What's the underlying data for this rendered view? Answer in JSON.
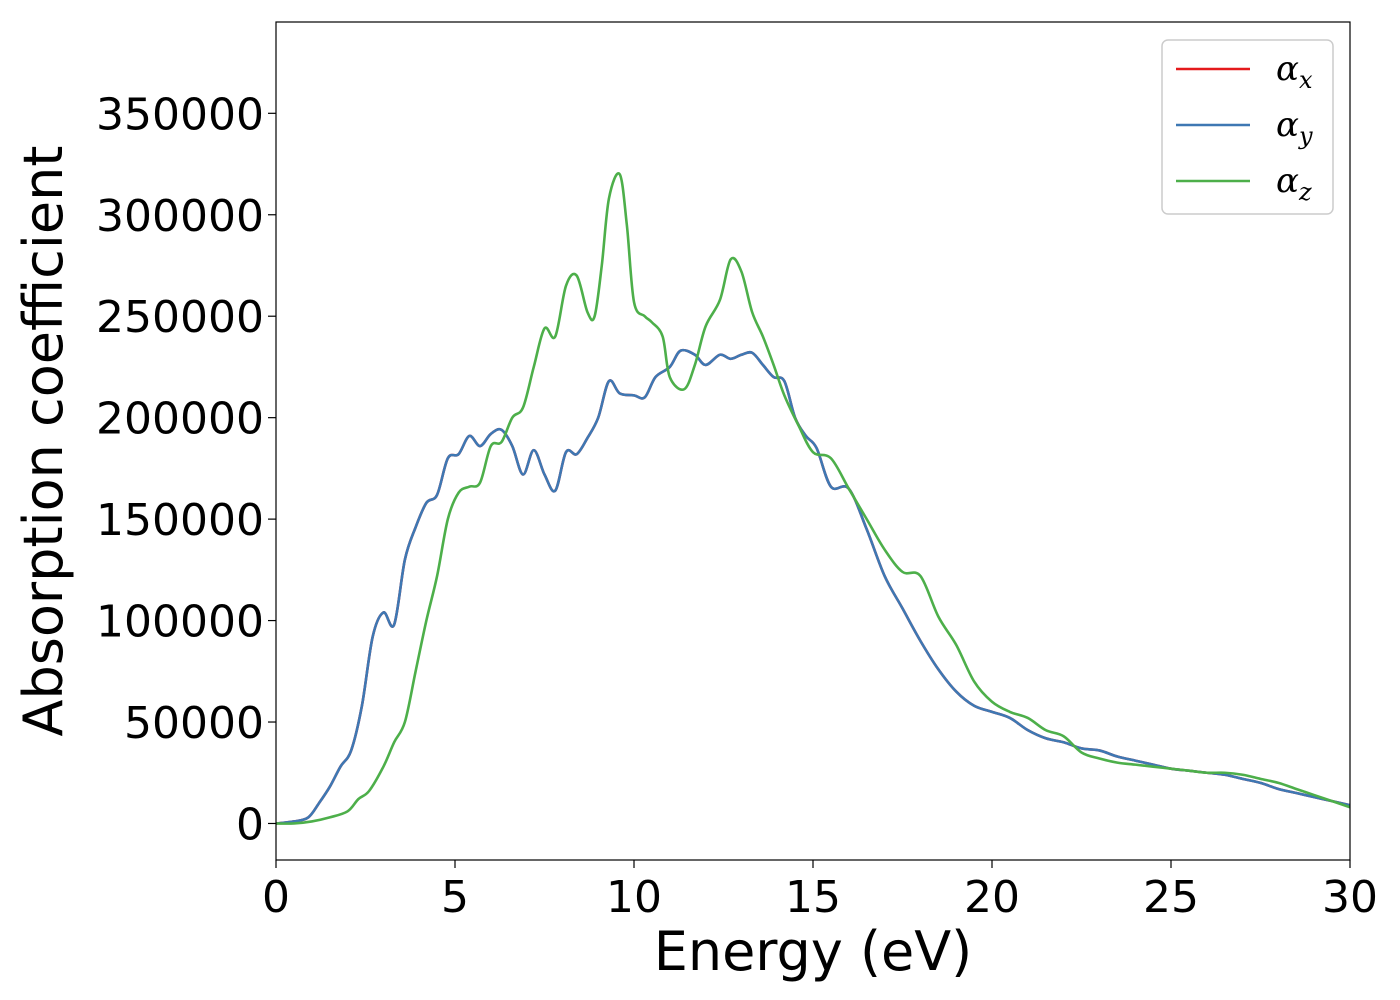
{
  "chart_data": {
    "type": "line",
    "xlabel": "Energy (eV)",
    "ylabel": "Absorption coefficient",
    "xlim": [
      0,
      30
    ],
    "ylim": [
      -18000,
      395000
    ],
    "xticks": [
      0,
      5,
      10,
      15,
      20,
      25,
      30
    ],
    "yticks": [
      0,
      50000,
      100000,
      150000,
      200000,
      250000,
      300000,
      350000
    ],
    "grid": false,
    "legend_position": "top-right",
    "series": [
      {
        "name": "α_x",
        "name_base": "α",
        "name_sub": "x",
        "color": "#e41a1c",
        "x": [
          0,
          0.5,
          0.9,
          1.2,
          1.5,
          1.8,
          2.1,
          2.4,
          2.7,
          3.0,
          3.3,
          3.6,
          3.9,
          4.2,
          4.5,
          4.8,
          5.1,
          5.4,
          5.7,
          6.0,
          6.3,
          6.6,
          6.9,
          7.2,
          7.5,
          7.8,
          8.1,
          8.4,
          8.7,
          9.0,
          9.3,
          9.6,
          10.0,
          10.3,
          10.6,
          11.0,
          11.3,
          11.7,
          12.0,
          12.4,
          12.7,
          13.0,
          13.3,
          13.6,
          13.9,
          14.2,
          14.5,
          14.8,
          15.1,
          15.5,
          16.0,
          16.5,
          17.0,
          17.5,
          18.0,
          18.5,
          19.0,
          19.5,
          20.0,
          20.5,
          21.0,
          21.5,
          22.0,
          22.5,
          23.0,
          23.5,
          24.0,
          24.5,
          25.0,
          25.5,
          26.0,
          26.5,
          27.0,
          27.5,
          28.0,
          28.5,
          29.0,
          29.5,
          30.0
        ],
        "y": [
          0,
          1000,
          3000,
          10000,
          18000,
          28000,
          36000,
          58000,
          92000,
          104000,
          98000,
          130000,
          146000,
          158000,
          162000,
          180000,
          182000,
          191000,
          186000,
          192000,
          194000,
          186000,
          172000,
          184000,
          172000,
          164000,
          183000,
          182000,
          190000,
          200000,
          218000,
          212000,
          211000,
          210000,
          220000,
          225000,
          233000,
          231000,
          226000,
          231000,
          229000,
          231000,
          232000,
          226000,
          220000,
          218000,
          200000,
          191000,
          185000,
          166000,
          165000,
          145000,
          122000,
          106000,
          90000,
          76000,
          65000,
          58000,
          55000,
          52000,
          46000,
          42000,
          40000,
          37000,
          36000,
          33000,
          31000,
          29000,
          27000,
          26000,
          25000,
          24000,
          22000,
          20000,
          17000,
          15000,
          13000,
          11000,
          9000
        ],
        "x_from": 0
      },
      {
        "name": "α_y",
        "name_base": "α",
        "name_sub": "y",
        "color": "#3e78b3",
        "x": [
          0,
          0.5,
          0.9,
          1.2,
          1.5,
          1.8,
          2.1,
          2.4,
          2.7,
          3.0,
          3.3,
          3.6,
          3.9,
          4.2,
          4.5,
          4.8,
          5.1,
          5.4,
          5.7,
          6.0,
          6.3,
          6.6,
          6.9,
          7.2,
          7.5,
          7.8,
          8.1,
          8.4,
          8.7,
          9.0,
          9.3,
          9.6,
          10.0,
          10.3,
          10.6,
          11.0,
          11.3,
          11.7,
          12.0,
          12.4,
          12.7,
          13.0,
          13.3,
          13.6,
          13.9,
          14.2,
          14.5,
          14.8,
          15.1,
          15.5,
          16.0,
          16.5,
          17.0,
          17.5,
          18.0,
          18.5,
          19.0,
          19.5,
          20.0,
          20.5,
          21.0,
          21.5,
          22.0,
          22.5,
          23.0,
          23.5,
          24.0,
          24.5,
          25.0,
          25.5,
          26.0,
          26.5,
          27.0,
          27.5,
          28.0,
          28.5,
          29.0,
          29.5,
          30.0
        ],
        "y": [
          0,
          1000,
          3000,
          10000,
          18000,
          28000,
          36000,
          58000,
          92000,
          104000,
          98000,
          130000,
          146000,
          158000,
          162000,
          180000,
          182000,
          191000,
          186000,
          192000,
          194000,
          186000,
          172000,
          184000,
          172000,
          164000,
          183000,
          182000,
          190000,
          200000,
          218000,
          212000,
          211000,
          210000,
          220000,
          225000,
          233000,
          231000,
          226000,
          231000,
          229000,
          231000,
          232000,
          226000,
          220000,
          218000,
          200000,
          191000,
          185000,
          166000,
          165000,
          145000,
          122000,
          106000,
          90000,
          76000,
          65000,
          58000,
          55000,
          52000,
          46000,
          42000,
          40000,
          37000,
          36000,
          33000,
          31000,
          29000,
          27000,
          26000,
          25000,
          24000,
          22000,
          20000,
          17000,
          15000,
          13000,
          11000,
          9000
        ]
      },
      {
        "name": "α_z",
        "name_base": "α",
        "name_sub": "z",
        "color": "#4daf4a",
        "x": [
          0,
          0.5,
          1.0,
          1.5,
          2.0,
          2.3,
          2.6,
          3.0,
          3.3,
          3.6,
          3.9,
          4.2,
          4.5,
          4.8,
          5.1,
          5.4,
          5.7,
          6.0,
          6.3,
          6.6,
          6.9,
          7.2,
          7.5,
          7.8,
          8.1,
          8.4,
          8.7,
          8.9,
          9.1,
          9.3,
          9.6,
          9.8,
          10.0,
          10.3,
          10.5,
          10.8,
          11.0,
          11.4,
          11.7,
          12.0,
          12.4,
          12.7,
          13.0,
          13.3,
          13.6,
          13.9,
          14.2,
          14.6,
          15.0,
          15.5,
          16.0,
          16.5,
          17.0,
          17.5,
          18.0,
          18.5,
          19.0,
          19.5,
          20.0,
          20.5,
          21.0,
          21.5,
          22.0,
          22.5,
          23.0,
          23.5,
          24.0,
          24.5,
          25.0,
          25.5,
          26.0,
          26.5,
          27.0,
          27.5,
          28.0,
          28.5,
          29.0,
          29.5,
          30.0
        ],
        "y": [
          0,
          0,
          1000,
          3000,
          6000,
          12000,
          16000,
          28000,
          40000,
          50000,
          75000,
          100000,
          122000,
          150000,
          163000,
          166000,
          168000,
          186000,
          188000,
          200000,
          205000,
          225000,
          244000,
          240000,
          265000,
          270000,
          252000,
          250000,
          275000,
          308000,
          320000,
          295000,
          257000,
          250000,
          247000,
          240000,
          220000,
          214000,
          226000,
          245000,
          258000,
          278000,
          272000,
          252000,
          240000,
          226000,
          211000,
          196000,
          183000,
          180000,
          165000,
          150000,
          135000,
          124000,
          122000,
          102000,
          88000,
          70000,
          60000,
          55000,
          52000,
          46000,
          43000,
          35000,
          32000,
          30000,
          29000,
          28000,
          27000,
          26000,
          25000,
          25000,
          24000,
          22000,
          20000,
          17000,
          14000,
          11000,
          8000
        ]
      }
    ]
  }
}
